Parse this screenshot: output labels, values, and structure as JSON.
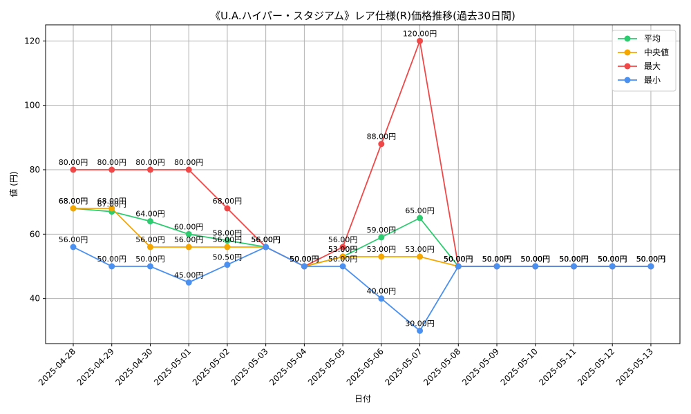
{
  "chart_data": {
    "type": "line",
    "title": "《U.A.ハイパー・スタジアム》レア仕様(R)価格推移(過去30日間)",
    "xlabel": "日付",
    "ylabel": "値 (円)",
    "ylim": [
      26,
      125
    ],
    "yticks": [
      40,
      60,
      80,
      100,
      120
    ],
    "grid": true,
    "legend_position": "top-right",
    "categories": [
      "2025-04-28",
      "2025-04-29",
      "2025-04-30",
      "2025-05-01",
      "2025-05-02",
      "2025-05-03",
      "2025-05-04",
      "2025-05-05",
      "2025-05-06",
      "2025-05-07",
      "2025-05-08",
      "2025-05-09",
      "2025-05-10",
      "2025-05-11",
      "2025-05-12",
      "2025-05-13"
    ],
    "series": [
      {
        "name": "平均",
        "color": "#2ecc71",
        "values": [
          68,
          67,
          64,
          60,
          58,
          56,
          50,
          53,
          59,
          65,
          50,
          50,
          50,
          50,
          50,
          50
        ]
      },
      {
        "name": "中央値",
        "color": "#f5a700",
        "values": [
          68,
          68,
          56,
          56,
          56,
          56,
          50,
          53,
          53,
          53,
          50,
          50,
          50,
          50,
          50,
          50
        ]
      },
      {
        "name": "最大",
        "color": "#f04848",
        "values": [
          80,
          80,
          80,
          80,
          68,
          56,
          50,
          56,
          88,
          120,
          50,
          50,
          50,
          50,
          50,
          50
        ]
      },
      {
        "name": "最小",
        "color": "#4a90f0",
        "values": [
          56,
          50,
          50,
          45,
          50.5,
          56,
          50,
          50,
          40,
          30,
          50,
          50,
          50,
          50,
          50,
          50
        ]
      }
    ],
    "value_suffix": "円"
  }
}
